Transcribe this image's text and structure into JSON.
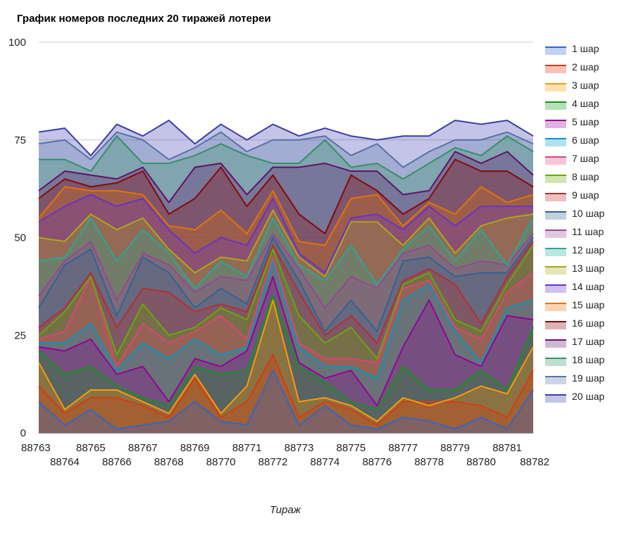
{
  "chart_data": {
    "type": "area",
    "title": "График номеров последних 20 тиражей лотереи",
    "xlabel": "Тираж",
    "ylabel": "",
    "ylim": [
      0,
      100
    ],
    "yticks": [
      0,
      25,
      50,
      75,
      100
    ],
    "grid": true,
    "legend_position": "right",
    "x": [
      "88763",
      "88764",
      "88765",
      "88766",
      "88767",
      "88768",
      "88769",
      "88770",
      "88771",
      "88772",
      "88773",
      "88774",
      "88775",
      "88776",
      "88777",
      "88778",
      "88779",
      "88780",
      "88781",
      "88782"
    ],
    "series": [
      {
        "name": "1 шар",
        "color": "#3366cc",
        "values": [
          8,
          2,
          6,
          1,
          2,
          3,
          8,
          3,
          2,
          16,
          2,
          7,
          2,
          1,
          4,
          3,
          1,
          4,
          1,
          11
        ]
      },
      {
        "name": "2 шар",
        "color": "#dc3912",
        "values": [
          12,
          5,
          9,
          9,
          7,
          4,
          14,
          4,
          8,
          20,
          4,
          8,
          6,
          2,
          8,
          8,
          8,
          7,
          4,
          16
        ]
      },
      {
        "name": "3 шар",
        "color": "#ff9900",
        "values": [
          18,
          6,
          11,
          11,
          8,
          5,
          15,
          5,
          12,
          34,
          8,
          9,
          7,
          3,
          9,
          7,
          9,
          12,
          10,
          22
        ]
      },
      {
        "name": "4 шар",
        "color": "#109618",
        "values": [
          21,
          15,
          17,
          12,
          9,
          7,
          17,
          15,
          16,
          35,
          17,
          13,
          8,
          6,
          17,
          11,
          11,
          16,
          11,
          27
        ]
      },
      {
        "name": "5 шар",
        "color": "#990099",
        "values": [
          22,
          21,
          24,
          15,
          17,
          8,
          19,
          17,
          21,
          40,
          18,
          14,
          16,
          7,
          22,
          34,
          20,
          17,
          30,
          29
        ]
      },
      {
        "name": "6 шар",
        "color": "#0099c6",
        "values": [
          23,
          23,
          28,
          16,
          23,
          19,
          24,
          20,
          22,
          44,
          22,
          17,
          17,
          14,
          34,
          38,
          26,
          18,
          32,
          34
        ]
      },
      {
        "name": "7 шар",
        "color": "#dd4477",
        "values": [
          24,
          26,
          40,
          17,
          28,
          23,
          26,
          30,
          24,
          45,
          23,
          19,
          19,
          18,
          37,
          39,
          27,
          24,
          36,
          41
        ]
      },
      {
        "name": "8 шар",
        "color": "#66aa00",
        "values": [
          25,
          31,
          40,
          20,
          33,
          25,
          27,
          32,
          29,
          47,
          30,
          23,
          27,
          19,
          38,
          41,
          29,
          26,
          38,
          48
        ]
      },
      {
        "name": "9 шар",
        "color": "#b82e2e",
        "values": [
          27,
          32,
          41,
          27,
          37,
          36,
          31,
          33,
          31,
          48,
          36,
          25,
          30,
          23,
          39,
          42,
          38,
          28,
          40,
          49
        ]
      },
      {
        "name": "10 шар",
        "color": "#316395",
        "values": [
          32,
          43,
          47,
          30,
          45,
          41,
          32,
          37,
          33,
          50,
          39,
          26,
          34,
          26,
          44,
          45,
          40,
          41,
          41,
          50
        ]
      },
      {
        "name": "11 шар",
        "color": "#994499",
        "values": [
          35,
          44,
          49,
          34,
          46,
          43,
          36,
          40,
          39,
          51,
          42,
          32,
          40,
          37,
          46,
          48,
          42,
          44,
          43,
          51
        ]
      },
      {
        "name": "12 шар",
        "color": "#22aa99",
        "values": [
          44,
          45,
          55,
          44,
          52,
          46,
          37,
          44,
          40,
          55,
          43,
          39,
          48,
          38,
          47,
          53,
          44,
          52,
          43,
          55
        ]
      },
      {
        "name": "13 шар",
        "color": "#aaaa11",
        "values": [
          50,
          49,
          56,
          52,
          55,
          47,
          41,
          45,
          44,
          57,
          45,
          40,
          54,
          54,
          48,
          55,
          46,
          53,
          55,
          56
        ]
      },
      {
        "name": "14 шар",
        "color": "#6633cc",
        "values": [
          54,
          58,
          61,
          58,
          60,
          52,
          46,
          50,
          48,
          60,
          46,
          41,
          55,
          56,
          52,
          58,
          53,
          58,
          58,
          58
        ]
      },
      {
        "name": "15 шар",
        "color": "#e67300",
        "values": [
          55,
          63,
          62,
          62,
          61,
          53,
          52,
          57,
          51,
          62,
          49,
          48,
          60,
          61,
          53,
          59,
          56,
          63,
          59,
          61
        ]
      },
      {
        "name": "16 шар",
        "color": "#8b0707",
        "values": [
          60,
          65,
          63,
          64,
          67,
          56,
          60,
          68,
          58,
          66,
          56,
          51,
          66,
          62,
          56,
          60,
          70,
          67,
          67,
          63
        ]
      },
      {
        "name": "17 шар",
        "color": "#651067",
        "values": [
          62,
          67,
          66,
          65,
          68,
          59,
          68,
          69,
          61,
          68,
          68,
          69,
          67,
          67,
          61,
          62,
          72,
          69,
          72,
          66
        ]
      },
      {
        "name": "18 шар",
        "color": "#329262",
        "values": [
          70,
          70,
          67,
          76,
          69,
          69,
          71,
          74,
          71,
          69,
          69,
          75,
          68,
          69,
          65,
          69,
          73,
          71,
          76,
          72
        ]
      },
      {
        "name": "19 шар",
        "color": "#5574a6",
        "values": [
          74,
          75,
          70,
          77,
          75,
          70,
          73,
          77,
          72,
          75,
          75,
          76,
          71,
          74,
          68,
          72,
          75,
          75,
          77,
          74
        ]
      },
      {
        "name": "20 шар",
        "color": "#3b3eac",
        "values": [
          77,
          78,
          71,
          79,
          76,
          80,
          74,
          79,
          75,
          79,
          76,
          78,
          76,
          75,
          76,
          76,
          80,
          79,
          80,
          76
        ]
      }
    ]
  }
}
